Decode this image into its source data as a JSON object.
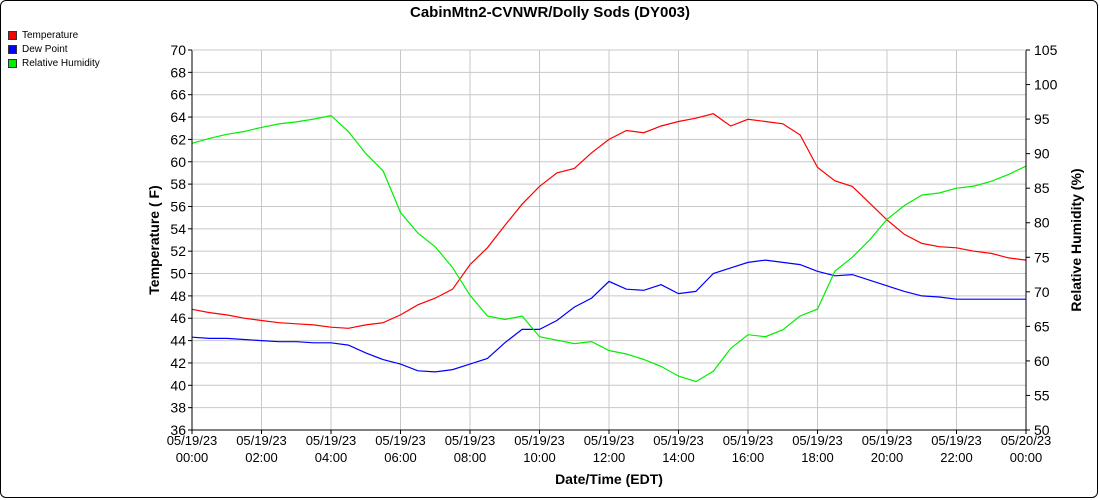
{
  "chart_data": {
    "type": "line",
    "title": "CabinMtn2-CVNWR/Dolly Sods (DY003)",
    "xlabel": "Date/Time (EDT)",
    "ylabel": "Temperature ( F)",
    "y2label": "Relative Humidity (%)",
    "ylim": [
      36,
      70
    ],
    "y2lim": [
      50,
      105
    ],
    "grid": true,
    "legend_position": "top-left",
    "x_tick_labels": [
      [
        "05/19/23",
        "00:00"
      ],
      [
        "05/19/23",
        "02:00"
      ],
      [
        "05/19/23",
        "04:00"
      ],
      [
        "05/19/23",
        "06:00"
      ],
      [
        "05/19/23",
        "08:00"
      ],
      [
        "05/19/23",
        "10:00"
      ],
      [
        "05/19/23",
        "12:00"
      ],
      [
        "05/19/23",
        "14:00"
      ],
      [
        "05/19/23",
        "16:00"
      ],
      [
        "05/19/23",
        "18:00"
      ],
      [
        "05/19/23",
        "20:00"
      ],
      [
        "05/19/23",
        "22:00"
      ],
      [
        "05/20/23",
        "00:00"
      ]
    ],
    "y_ticks": [
      36,
      38,
      40,
      42,
      44,
      46,
      48,
      50,
      52,
      54,
      56,
      58,
      60,
      62,
      64,
      66,
      68,
      70
    ],
    "y2_ticks": [
      50,
      55,
      60,
      65,
      70,
      75,
      80,
      85,
      90,
      95,
      100,
      105
    ],
    "x_hours_range": [
      0,
      24
    ],
    "series": [
      {
        "name": "Temperature",
        "color": "#ff0000",
        "axis": "left",
        "x": [
          0,
          0.5,
          1,
          1.5,
          2,
          2.5,
          3,
          3.5,
          4,
          4.5,
          5,
          5.5,
          6,
          6.5,
          7,
          7.5,
          8,
          8.5,
          9,
          9.5,
          10,
          10.5,
          11,
          11.5,
          12,
          12.5,
          13,
          13.5,
          14,
          14.5,
          15,
          15.5,
          16,
          16.5,
          17,
          17.5,
          18,
          18.5,
          19,
          19.5,
          20,
          20.5,
          21,
          21.5,
          22,
          22.5,
          23,
          23.5,
          24
        ],
        "values": [
          46.8,
          46.5,
          46.3,
          46.0,
          45.8,
          45.6,
          45.5,
          45.4,
          45.2,
          45.1,
          45.4,
          45.6,
          46.3,
          47.2,
          47.8,
          48.6,
          50.8,
          52.3,
          54.3,
          56.2,
          57.8,
          59.0,
          59.4,
          60.8,
          62.0,
          62.8,
          62.6,
          63.2,
          63.6,
          63.9,
          64.3,
          63.2,
          63.8,
          63.6,
          63.4,
          62.4,
          59.5,
          58.3,
          57.8,
          56.3,
          54.8,
          53.5,
          52.7,
          52.4,
          52.3,
          52.0,
          51.8,
          51.4,
          51.2
        ]
      },
      {
        "name": "Dew Point",
        "color": "#0000ff",
        "axis": "left",
        "x": [
          0,
          0.5,
          1,
          1.5,
          2,
          2.5,
          3,
          3.5,
          4,
          4.5,
          5,
          5.5,
          6,
          6.5,
          7,
          7.5,
          8,
          8.5,
          9,
          9.5,
          10,
          10.5,
          11,
          11.5,
          12,
          12.5,
          13,
          13.5,
          14,
          14.5,
          15,
          15.5,
          16,
          16.5,
          17,
          17.5,
          18,
          18.5,
          19,
          19.5,
          20,
          20.5,
          21,
          21.5,
          22,
          22.5,
          23,
          23.5,
          24
        ],
        "values": [
          44.3,
          44.2,
          44.2,
          44.1,
          44.0,
          43.9,
          43.9,
          43.8,
          43.8,
          43.6,
          42.9,
          42.3,
          41.9,
          41.3,
          41.2,
          41.4,
          41.9,
          42.4,
          43.8,
          45.0,
          45.0,
          45.8,
          47.0,
          47.8,
          49.3,
          48.6,
          48.5,
          49.0,
          48.2,
          48.4,
          50.0,
          50.5,
          51.0,
          51.2,
          51.0,
          50.8,
          50.2,
          49.8,
          49.9,
          49.4,
          48.9,
          48.4,
          48.0,
          47.9,
          47.7,
          47.7,
          47.7,
          47.7,
          47.7
        ]
      },
      {
        "name": "Relative Humidity",
        "color": "#00ee00",
        "axis": "right",
        "x": [
          0,
          0.5,
          1,
          1.5,
          2,
          2.5,
          3,
          3.5,
          4,
          4.5,
          5,
          5.5,
          6,
          6.5,
          7,
          7.5,
          8,
          8.5,
          9,
          9.5,
          10,
          10.5,
          11,
          11.5,
          12,
          12.5,
          13,
          13.5,
          14,
          14.5,
          15,
          15.5,
          16,
          16.5,
          17,
          17.5,
          18,
          18.5,
          19,
          19.5,
          20,
          20.5,
          21,
          21.5,
          22,
          22.5,
          23,
          23.5,
          24
        ],
        "values": [
          91.5,
          92.2,
          92.8,
          93.2,
          93.8,
          94.3,
          94.6,
          95.0,
          95.5,
          93.2,
          90.0,
          87.5,
          81.5,
          78.5,
          76.5,
          73.5,
          69.5,
          66.5,
          66.0,
          66.5,
          63.5,
          63.0,
          62.5,
          62.8,
          61.5,
          61.0,
          60.2,
          59.2,
          57.8,
          57.0,
          58.5,
          61.8,
          63.8,
          63.5,
          64.5,
          66.5,
          67.5,
          73.0,
          75.0,
          77.5,
          80.5,
          82.5,
          84.0,
          84.3,
          85.0,
          85.3,
          86.0,
          87.0,
          88.2
        ]
      }
    ]
  }
}
